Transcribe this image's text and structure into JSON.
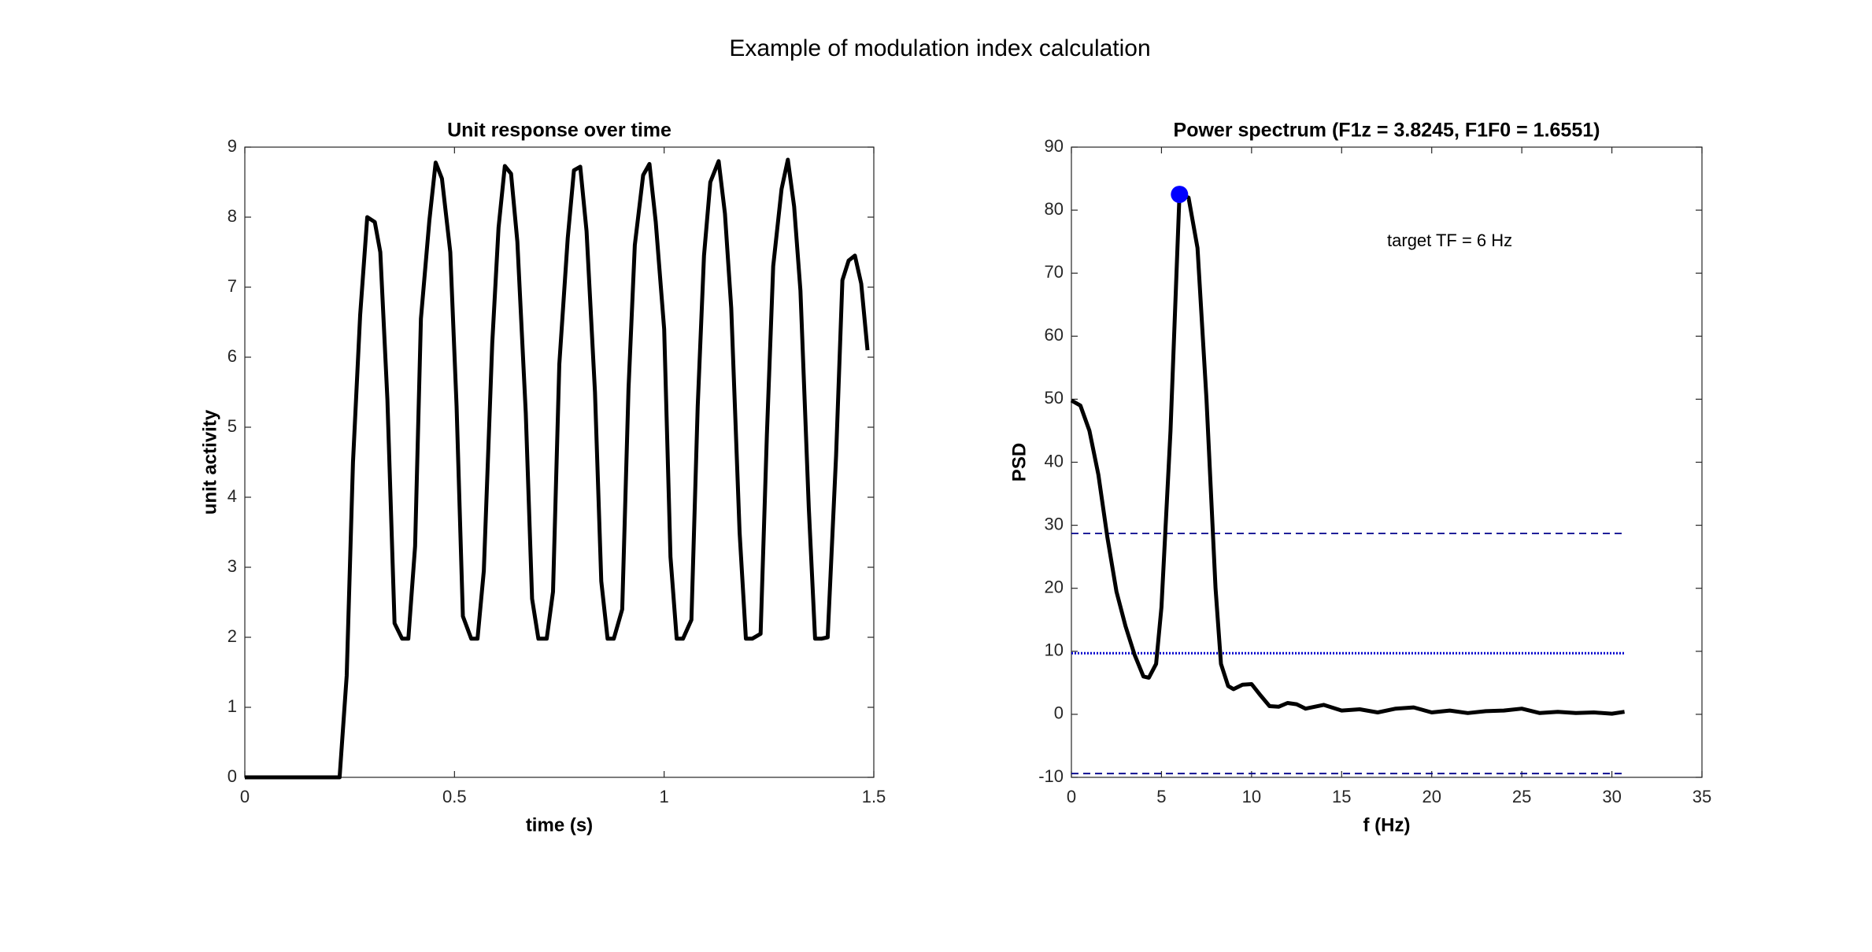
{
  "title": "Example of modulation index calculation",
  "chart_data": [
    {
      "type": "line",
      "title": "Unit response over time",
      "x_label": "time (s)",
      "y_label": "unit activity",
      "color": "#000000",
      "x": [
        0,
        0.226,
        0.243,
        0.258,
        0.275,
        0.292,
        0.31,
        0.323,
        0.34,
        0.357,
        0.375,
        0.39,
        0.406,
        0.42,
        0.44,
        0.455,
        0.47,
        0.49,
        0.505,
        0.52,
        0.54,
        0.555,
        0.57,
        0.59,
        0.605,
        0.62,
        0.635,
        0.65,
        0.67,
        0.685,
        0.7,
        0.72,
        0.735,
        0.75,
        0.77,
        0.785,
        0.8,
        0.815,
        0.835,
        0.85,
        0.865,
        0.88,
        0.9,
        0.915,
        0.93,
        0.95,
        0.965,
        0.98,
        1.0,
        1.015,
        1.03,
        1.045,
        1.065,
        1.08,
        1.095,
        1.11,
        1.13,
        1.145,
        1.16,
        1.18,
        1.195,
        1.21,
        1.23,
        1.245,
        1.26,
        1.28,
        1.295,
        1.31,
        1.325,
        1.345,
        1.36,
        1.375,
        1.39,
        1.41,
        1.425,
        1.44,
        1.455,
        1.47,
        1.485
      ],
      "values": [
        0,
        0,
        1.45,
        4.5,
        6.6,
        8.0,
        7.93,
        7.5,
        5.4,
        2.2,
        1.98,
        1.98,
        3.3,
        6.55,
        7.95,
        8.78,
        8.55,
        7.5,
        5.3,
        2.3,
        1.98,
        1.98,
        2.95,
        6.2,
        7.85,
        8.73,
        8.62,
        7.65,
        5.2,
        2.55,
        1.98,
        1.98,
        2.65,
        5.9,
        7.7,
        8.67,
        8.72,
        7.8,
        5.5,
        2.8,
        1.98,
        1.98,
        2.4,
        5.55,
        7.6,
        8.6,
        8.76,
        7.93,
        6.4,
        3.15,
        1.98,
        1.98,
        2.25,
        5.3,
        7.45,
        8.5,
        8.8,
        8.05,
        6.7,
        3.5,
        1.98,
        1.98,
        2.05,
        4.9,
        7.3,
        8.4,
        8.82,
        8.15,
        6.95,
        3.85,
        1.98,
        1.98,
        2.0,
        4.6,
        7.1,
        7.38,
        7.45,
        7.05,
        6.1
      ],
      "xlim": [
        0,
        1.5
      ],
      "xticks": [
        0,
        0.5,
        1,
        1.5
      ],
      "ylim": [
        0,
        9
      ],
      "yticks": [
        0,
        1,
        2,
        3,
        4,
        5,
        6,
        7,
        8,
        9
      ]
    },
    {
      "type": "line",
      "title": "Power spectrum (F1z = 3.8245, F1F0 = 1.6551)",
      "x_label": "f (Hz)",
      "y_label": "PSD",
      "color": "#000000",
      "x": [
        0,
        0.5,
        1,
        1.5,
        2,
        2.5,
        3,
        3.5,
        4,
        4.3,
        4.7,
        5,
        5.5,
        6,
        6.5,
        7,
        7.5,
        8,
        8.3,
        8.7,
        9,
        9.5,
        10,
        10.5,
        11,
        11.5,
        12,
        12.5,
        13,
        14,
        15,
        16,
        17,
        18,
        19,
        20,
        21,
        22,
        23,
        24,
        25,
        26,
        27,
        28,
        29,
        30,
        30.7
      ],
      "values": [
        49.8,
        49,
        45,
        38,
        28,
        19.5,
        14,
        9.5,
        6,
        5.8,
        8,
        17,
        45,
        82.5,
        82,
        74,
        50,
        20,
        8,
        4.5,
        4,
        4.7,
        4.8,
        3,
        1.3,
        1.2,
        1.8,
        1.6,
        0.9,
        1.5,
        0.6,
        0.8,
        0.3,
        0.9,
        1.1,
        0.3,
        0.6,
        0.2,
        0.5,
        0.6,
        0.9,
        0.2,
        0.4,
        0.2,
        0.3,
        0.1,
        0.4
      ],
      "peak": {
        "x": 6,
        "y": 82.5,
        "color": "#0000ff"
      },
      "hlines": [
        {
          "y": 28.7,
          "x": [
            0,
            30.7
          ],
          "style": "dashed",
          "color": "#00008b"
        },
        {
          "y": 9.7,
          "x": [
            0,
            30.7
          ],
          "style": "dotted",
          "color": "#0000cd"
        },
        {
          "y": -9.4,
          "x": [
            0,
            30.7
          ],
          "style": "dashed",
          "color": "#00008b"
        }
      ],
      "annotation": {
        "text": "target TF = 6 Hz",
        "x": 21,
        "y": 75
      },
      "xlim": [
        0,
        35
      ],
      "xticks": [
        0,
        5,
        10,
        15,
        20,
        25,
        30,
        35
      ],
      "ylim": [
        -10,
        90
      ],
      "yticks": [
        -10,
        0,
        10,
        20,
        30,
        40,
        50,
        60,
        70,
        80,
        90
      ]
    }
  ]
}
